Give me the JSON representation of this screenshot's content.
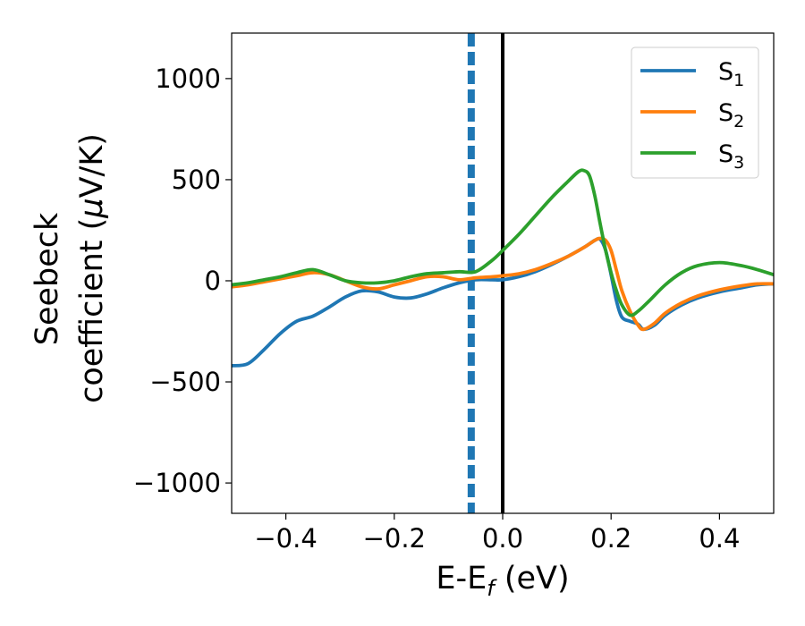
{
  "chart_data": {
    "type": "line",
    "xlabel": "E-E",
    "xlabel_sub": "f",
    "xlabel_unit": " (eV)",
    "ylabel_line1": "Seebeck",
    "ylabel_line2": "coefficient  (",
    "ylabel_mu": "μ",
    "ylabel_unit": "V/K)",
    "xlim": [
      -0.5,
      0.5
    ],
    "ylim": [
      -1150,
      1225
    ],
    "x_ticks": [
      -0.4,
      -0.2,
      0.0,
      0.2,
      0.4
    ],
    "x_tick_labels": [
      "−0.4",
      "−0.2",
      "0.0",
      "0.2",
      "0.4"
    ],
    "y_ticks": [
      1000,
      500,
      0,
      -500,
      -1000
    ],
    "y_tick_labels": [
      "1000",
      "500",
      "0",
      "−500",
      "−1000"
    ],
    "grid": false,
    "legend_position": "top-right",
    "vlines": [
      {
        "x": -0.058,
        "style": "dashed",
        "color": "#1f77b4"
      },
      {
        "x": 0.0,
        "style": "solid",
        "color": "#000000"
      }
    ],
    "series": [
      {
        "name": "S",
        "subscript": "1",
        "color": "#1f77b4",
        "x": [
          -0.5,
          -0.47,
          -0.44,
          -0.41,
          -0.38,
          -0.35,
          -0.32,
          -0.29,
          -0.26,
          -0.23,
          -0.2,
          -0.17,
          -0.14,
          -0.11,
          -0.08,
          -0.05,
          -0.02,
          0.0,
          0.03,
          0.06,
          0.09,
          0.12,
          0.15,
          0.17,
          0.18,
          0.19,
          0.2,
          0.21,
          0.22,
          0.235,
          0.25,
          0.26,
          0.28,
          0.3,
          0.33,
          0.36,
          0.4,
          0.44,
          0.47,
          0.5
        ],
        "y": [
          -420,
          -410,
          -340,
          -260,
          -200,
          -175,
          -130,
          -80,
          -50,
          -55,
          -80,
          -85,
          -65,
          -35,
          -10,
          5,
          5,
          5,
          20,
          45,
          80,
          120,
          165,
          200,
          205,
          150,
          30,
          -100,
          -180,
          -200,
          -215,
          -240,
          -220,
          -170,
          -120,
          -85,
          -55,
          -35,
          -20,
          -15
        ]
      },
      {
        "name": "S",
        "subscript": "2",
        "color": "#ff7f0e",
        "x": [
          -0.5,
          -0.47,
          -0.44,
          -0.41,
          -0.38,
          -0.35,
          -0.32,
          -0.29,
          -0.26,
          -0.23,
          -0.2,
          -0.17,
          -0.14,
          -0.11,
          -0.08,
          -0.05,
          -0.02,
          0.0,
          0.03,
          0.06,
          0.09,
          0.12,
          0.15,
          0.17,
          0.18,
          0.19,
          0.2,
          0.21,
          0.22,
          0.235,
          0.25,
          0.26,
          0.28,
          0.3,
          0.33,
          0.36,
          0.4,
          0.44,
          0.47,
          0.5
        ],
        "y": [
          -30,
          -20,
          -5,
          10,
          25,
          40,
          30,
          0,
          -30,
          -40,
          -20,
          0,
          20,
          20,
          5,
          15,
          20,
          25,
          35,
          55,
          85,
          120,
          165,
          200,
          210,
          200,
          150,
          50,
          -50,
          -150,
          -220,
          -240,
          -210,
          -160,
          -110,
          -75,
          -45,
          -25,
          -15,
          -15
        ]
      },
      {
        "name": "S",
        "subscript": "3",
        "color": "#2ca02c",
        "x": [
          -0.5,
          -0.47,
          -0.44,
          -0.41,
          -0.38,
          -0.35,
          -0.32,
          -0.29,
          -0.26,
          -0.23,
          -0.2,
          -0.17,
          -0.14,
          -0.11,
          -0.08,
          -0.05,
          -0.02,
          0.0,
          0.03,
          0.06,
          0.09,
          0.12,
          0.14,
          0.15,
          0.16,
          0.17,
          0.18,
          0.19,
          0.2,
          0.21,
          0.22,
          0.235,
          0.25,
          0.27,
          0.3,
          0.33,
          0.36,
          0.4,
          0.44,
          0.47,
          0.5
        ],
        "y": [
          -20,
          -10,
          5,
          20,
          40,
          55,
          30,
          0,
          -10,
          -10,
          0,
          20,
          35,
          40,
          45,
          45,
          100,
          150,
          230,
          320,
          410,
          490,
          540,
          545,
          520,
          420,
          280,
          150,
          40,
          -50,
          -120,
          -170,
          -150,
          -100,
          -20,
          40,
          75,
          90,
          75,
          55,
          30
        ]
      }
    ]
  }
}
